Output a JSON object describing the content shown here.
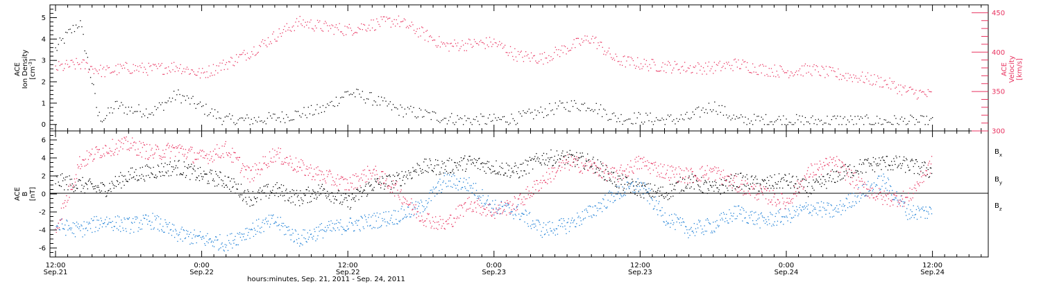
{
  "colors": {
    "black": "#000000",
    "pink": "#e8325f",
    "blue": "#1d7fd6"
  },
  "xaxis": {
    "tick_labels": [
      {
        "time": "12:00",
        "date": "Sep.21"
      },
      {
        "time": "0:00",
        "date": "Sep.22"
      },
      {
        "time": "12:00",
        "date": "Sep.22"
      },
      {
        "time": "0:00",
        "date": "Sep.23"
      },
      {
        "time": "12:00",
        "date": "Sep.23"
      },
      {
        "time": "0:00",
        "date": "Sep.24"
      },
      {
        "time": "12:00",
        "date": "Sep.24"
      }
    ],
    "title": "hours:minutes, Sep. 21, 2011 - Sep. 24, 2011"
  },
  "panel1": {
    "ylabel_lines": [
      "ACE",
      "Ion Density"
    ],
    "yunit_pre": "[cm",
    "yunit_sup": "-3",
    "yunit_post": "]",
    "y2label_lines": [
      "ACE",
      "Velocity",
      "[km/s]"
    ]
  },
  "panel2": {
    "ylabel_lines": [
      "ACE",
      "B",
      "[nT]"
    ],
    "legend": [
      {
        "letter": "B",
        "sub": "x",
        "color": "#000000"
      },
      {
        "letter": "B",
        "sub": "y",
        "color": "#1d7fd6"
      },
      {
        "letter": "B",
        "sub": "z",
        "color": "#e8325f"
      }
    ]
  },
  "chart_data": [
    {
      "type": "scatter",
      "title": "",
      "xlabel": "hours:minutes, Sep. 21, 2011 - Sep. 24, 2011",
      "x_ticks": [
        "12:00 Sep.21",
        "0:00 Sep.22",
        "12:00 Sep.22",
        "0:00 Sep.23",
        "12:00 Sep.23",
        "0:00 Sep.24",
        "12:00 Sep.24"
      ],
      "y_axis_left": {
        "label": "ACE Ion Density [cm-3]",
        "ylim": [
          -0.3,
          5.6
        ],
        "ticks": [
          0,
          1,
          2,
          3,
          4,
          5
        ]
      },
      "y_axis_right": {
        "label": "ACE Velocity [km/s]",
        "ylim": [
          300,
          460
        ],
        "ticks": [
          300,
          350,
          400,
          450
        ]
      },
      "series": [
        {
          "name": "Ion Density",
          "color": "#000000",
          "axis": "left",
          "x_hours": [
            0,
            1,
            2,
            3,
            3.5,
            4,
            5,
            6,
            8,
            10,
            12,
            14,
            16,
            18,
            20,
            22,
            24,
            26,
            28,
            30,
            32,
            34,
            36,
            38,
            40,
            42,
            44,
            46,
            48,
            50,
            52,
            54,
            56,
            58,
            60,
            62,
            64,
            66,
            68,
            70,
            72
          ],
          "values": [
            3.5,
            4.2,
            4.8,
            2.0,
            0.4,
            0.3,
            0.9,
            0.7,
            0.6,
            1.4,
            0.8,
            0.2,
            0.2,
            0.3,
            0.5,
            0.7,
            1.5,
            1.2,
            0.7,
            0.5,
            0.3,
            0.2,
            0.2,
            0.3,
            0.6,
            0.9,
            0.9,
            0.3,
            0.3,
            0.2,
            0.3,
            0.9,
            0.2,
            0.2,
            0.2,
            0.15,
            0.2,
            0.15,
            0.15,
            0.15,
            0.1
          ]
        },
        {
          "name": "Velocity",
          "color": "#e8325f",
          "axis": "right",
          "x_hours": [
            0,
            2,
            4,
            6,
            8,
            10,
            12,
            14,
            16,
            18,
            20,
            22,
            24,
            26,
            28,
            30,
            32,
            34,
            36,
            38,
            40,
            42,
            44,
            46,
            48,
            50,
            52,
            54,
            56,
            58,
            60,
            62,
            64,
            66,
            68,
            70,
            72
          ],
          "values": [
            380,
            385,
            375,
            380,
            378,
            382,
            372,
            385,
            400,
            420,
            438,
            432,
            428,
            435,
            440,
            425,
            408,
            410,
            412,
            395,
            392,
            405,
            418,
            390,
            385,
            382,
            380,
            380,
            385,
            378,
            375,
            378,
            372,
            368,
            362,
            350,
            345
          ]
        }
      ]
    },
    {
      "type": "scatter",
      "title": "",
      "xlabel": "hours:minutes, Sep. 21, 2011 - Sep. 24, 2011",
      "y_axis": {
        "label": "ACE B [nT]",
        "ylim": [
          -7,
          7
        ],
        "ticks": [
          -6,
          -4,
          -2,
          0,
          2,
          4,
          6
        ]
      },
      "series": [
        {
          "name": "Bx",
          "color": "#000000",
          "x_hours": [
            0,
            2,
            4,
            6,
            8,
            10,
            12,
            14,
            16,
            18,
            20,
            22,
            24,
            26,
            28,
            30,
            32,
            34,
            36,
            38,
            40,
            42,
            44,
            46,
            48,
            50,
            52,
            54,
            56,
            58,
            60,
            62,
            64,
            66,
            68,
            70,
            72
          ],
          "values": [
            1.5,
            1.0,
            0.5,
            2.0,
            2.5,
            3.0,
            2.0,
            1.5,
            -0.5,
            0.5,
            -0.5,
            0.5,
            -1.0,
            1.0,
            1.5,
            3.0,
            3.0,
            3.5,
            3.0,
            2.5,
            4.0,
            4.0,
            3.5,
            1.5,
            0.5,
            0.0,
            1.5,
            0.5,
            1.5,
            1.0,
            1.5,
            0.5,
            2.0,
            3.0,
            3.5,
            3.2,
            2.5
          ]
        },
        {
          "name": "By",
          "color": "#1d7fd6",
          "x_hours": [
            0,
            2,
            4,
            6,
            8,
            10,
            12,
            14,
            16,
            18,
            20,
            22,
            24,
            26,
            28,
            30,
            32,
            34,
            36,
            38,
            40,
            42,
            44,
            46,
            48,
            50,
            52,
            54,
            56,
            58,
            60,
            62,
            64,
            66,
            68,
            70,
            72
          ],
          "values": [
            -3.5,
            -4.0,
            -3.0,
            -3.5,
            -3.0,
            -4.5,
            -5.0,
            -5.5,
            -4.0,
            -3.0,
            -5.0,
            -4.0,
            -3.5,
            -3.0,
            -2.5,
            -1.5,
            1.5,
            1.0,
            -1.5,
            -2.0,
            -4.0,
            -3.5,
            -2.0,
            0.0,
            1.0,
            -2.5,
            -4.0,
            -3.5,
            -2.0,
            -3.0,
            -2.5,
            -1.5,
            -2.0,
            0.0,
            1.5,
            -2.0,
            -2.0
          ]
        },
        {
          "name": "Bz",
          "color": "#e8325f",
          "x_hours": [
            0,
            2,
            4,
            6,
            8,
            10,
            12,
            14,
            16,
            18,
            20,
            22,
            24,
            26,
            28,
            30,
            32,
            34,
            36,
            38,
            40,
            42,
            44,
            46,
            48,
            50,
            52,
            54,
            56,
            58,
            60,
            62,
            64,
            66,
            68,
            70,
            72
          ],
          "values": [
            -4.0,
            3.5,
            5.0,
            5.5,
            4.5,
            5.0,
            4.0,
            5.0,
            2.0,
            4.5,
            3.0,
            2.0,
            1.0,
            2.5,
            0.5,
            -2.5,
            -3.5,
            -1.0,
            -2.0,
            -1.0,
            1.5,
            3.5,
            3.0,
            2.0,
            3.5,
            2.5,
            2.0,
            2.5,
            1.0,
            0.0,
            -1.0,
            2.5,
            3.5,
            1.0,
            -0.5,
            -0.5,
            3.5
          ]
        }
      ]
    }
  ]
}
